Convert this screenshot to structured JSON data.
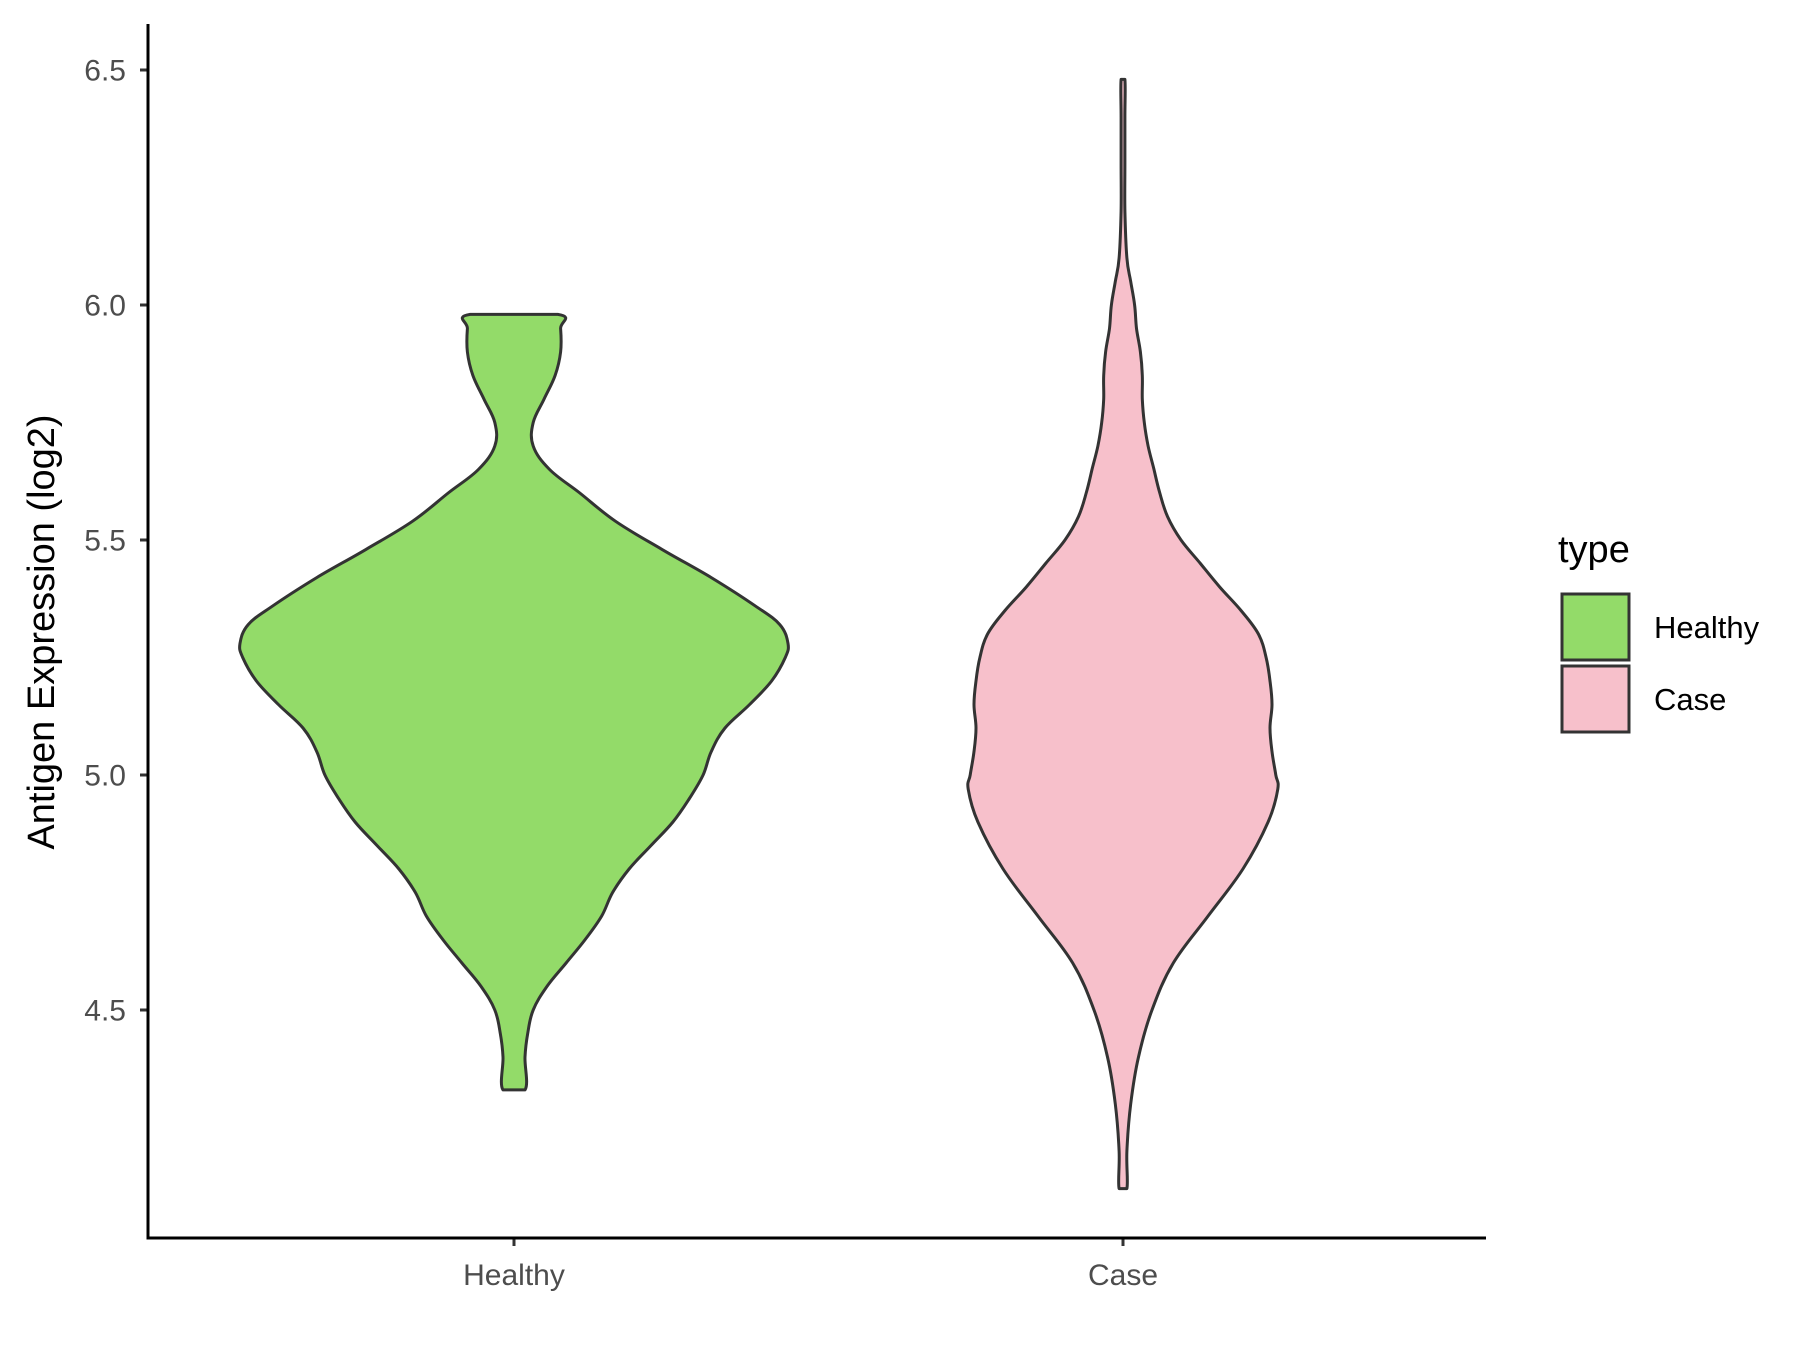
{
  "chart_data": {
    "type": "violin",
    "ylabel": "Antigen Expression (log2)",
    "xlabel": "",
    "categories": [
      "Healthy",
      "Case"
    ],
    "yticks": [
      "4.5",
      "5.0",
      "5.5",
      "6.0",
      "6.5"
    ],
    "ylim": [
      4.04,
      6.59
    ],
    "legend": {
      "title": "type",
      "position": "right",
      "entries": [
        "Healthy",
        "Case"
      ]
    },
    "series": [
      {
        "name": "Healthy",
        "color": "#93DB69",
        "min": 4.33,
        "max": 5.98,
        "relative_width": [
          [
            4.33,
            0.04
          ],
          [
            4.4,
            0.04
          ],
          [
            4.45,
            0.05
          ],
          [
            4.5,
            0.07
          ],
          [
            4.55,
            0.12
          ],
          [
            4.6,
            0.19
          ],
          [
            4.65,
            0.26
          ],
          [
            4.7,
            0.32
          ],
          [
            4.75,
            0.36
          ],
          [
            4.8,
            0.42
          ],
          [
            4.85,
            0.5
          ],
          [
            4.9,
            0.58
          ],
          [
            4.95,
            0.64
          ],
          [
            5.0,
            0.69
          ],
          [
            5.05,
            0.72
          ],
          [
            5.1,
            0.77
          ],
          [
            5.15,
            0.86
          ],
          [
            5.2,
            0.94
          ],
          [
            5.25,
            0.99
          ],
          [
            5.28,
            1.0
          ],
          [
            5.32,
            0.97
          ],
          [
            5.36,
            0.88
          ],
          [
            5.42,
            0.72
          ],
          [
            5.48,
            0.54
          ],
          [
            5.54,
            0.37
          ],
          [
            5.6,
            0.24
          ],
          [
            5.65,
            0.13
          ],
          [
            5.7,
            0.07
          ],
          [
            5.75,
            0.07
          ],
          [
            5.8,
            0.11
          ],
          [
            5.85,
            0.15
          ],
          [
            5.9,
            0.17
          ],
          [
            5.95,
            0.17
          ],
          [
            5.98,
            0.16
          ]
        ]
      },
      {
        "name": "Case",
        "color": "#F7C0CB",
        "min": 4.12,
        "max": 6.48,
        "relative_width": [
          [
            4.12,
            0.02
          ],
          [
            4.2,
            0.02
          ],
          [
            4.3,
            0.04
          ],
          [
            4.4,
            0.08
          ],
          [
            4.5,
            0.15
          ],
          [
            4.6,
            0.26
          ],
          [
            4.7,
            0.44
          ],
          [
            4.8,
            0.62
          ],
          [
            4.9,
            0.75
          ],
          [
            4.97,
            0.8
          ],
          [
            5.0,
            0.79
          ],
          [
            5.05,
            0.77
          ],
          [
            5.1,
            0.76
          ],
          [
            5.15,
            0.77
          ],
          [
            5.2,
            0.76
          ],
          [
            5.25,
            0.74
          ],
          [
            5.3,
            0.7
          ],
          [
            5.35,
            0.61
          ],
          [
            5.4,
            0.5
          ],
          [
            5.45,
            0.4
          ],
          [
            5.5,
            0.3
          ],
          [
            5.55,
            0.23
          ],
          [
            5.6,
            0.19
          ],
          [
            5.65,
            0.16
          ],
          [
            5.7,
            0.13
          ],
          [
            5.75,
            0.11
          ],
          [
            5.8,
            0.1
          ],
          [
            5.85,
            0.1
          ],
          [
            5.9,
            0.09
          ],
          [
            5.95,
            0.07
          ],
          [
            6.0,
            0.06
          ],
          [
            6.05,
            0.04
          ],
          [
            6.1,
            0.02
          ],
          [
            6.2,
            0.01
          ],
          [
            6.3,
            0.01
          ],
          [
            6.4,
            0.01
          ],
          [
            6.48,
            0.01
          ]
        ]
      }
    ]
  }
}
